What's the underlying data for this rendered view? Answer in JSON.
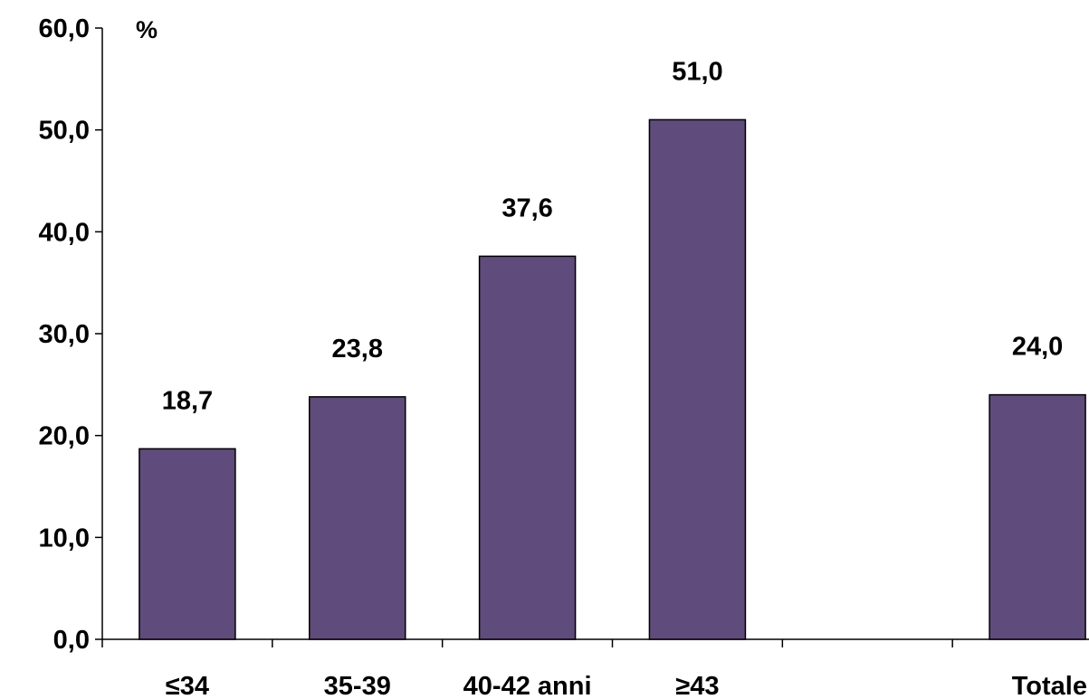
{
  "chart_data": {
    "type": "bar",
    "ylabel": "%",
    "ylim": [
      0,
      60
    ],
    "yticks": [
      "0,0",
      "10,0",
      "20,0",
      "30,0",
      "40,0",
      "50,0",
      "60,0"
    ],
    "categories": [
      "≤34",
      "35-39",
      "40-42 anni",
      "≥43",
      "",
      "Totale"
    ],
    "values": [
      18.7,
      23.8,
      37.6,
      51.0,
      null,
      24.0
    ],
    "data_labels": [
      "18,7",
      "23,8",
      "37,6",
      "51,0",
      "",
      "24,0"
    ],
    "bar_color": "#5f4b7c",
    "grid": false,
    "legend": "none"
  }
}
